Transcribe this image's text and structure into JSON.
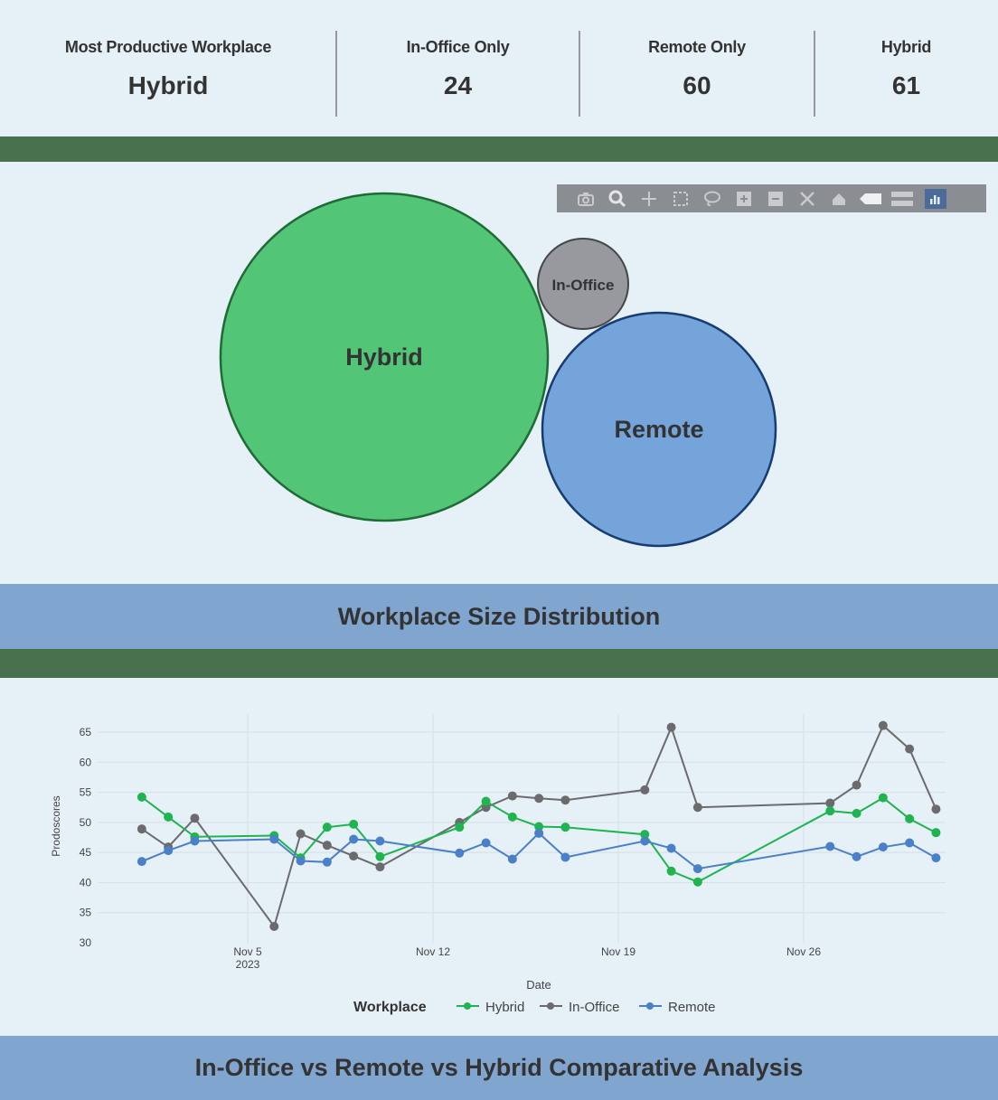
{
  "kpis": [
    {
      "label": "Most Productive Workplace",
      "value": "Hybrid"
    },
    {
      "label": "In-Office Only",
      "value": "24"
    },
    {
      "label": "Remote Only",
      "value": "60"
    },
    {
      "label": "Hybrid",
      "value": "61"
    }
  ],
  "toolbar": {
    "icons": [
      "camera-icon",
      "zoom-icon",
      "pan-icon",
      "box-select-icon",
      "lasso-select-icon",
      "zoom-in-icon",
      "zoom-out-icon",
      "autoscale-icon",
      "reset-axes-icon",
      "hover-closest-icon",
      "hover-compare-icon",
      "plotly-logo-icon"
    ]
  },
  "bubble_chart": {
    "title": "Workplace Size Distribution",
    "bubbles": [
      {
        "label": "Hybrid",
        "value": 61,
        "fill": "#52c577",
        "stroke": "#1f6b35"
      },
      {
        "label": "In-Office",
        "value": 24,
        "fill": "#97999e",
        "stroke": "#444649"
      },
      {
        "label": "Remote",
        "value": 60,
        "fill": "#75a4db",
        "stroke": "#173c72"
      }
    ]
  },
  "line_chart": {
    "title": "In-Office vs Remote vs Hybrid Comparative Analysis",
    "ylabel": "Prodoscores",
    "xlabel": "Date",
    "x_ticks": [
      {
        "label": "Nov 5",
        "sub": "2023"
      },
      {
        "label": "Nov 12",
        "sub": ""
      },
      {
        "label": "Nov 19",
        "sub": ""
      },
      {
        "label": "Nov 26",
        "sub": ""
      }
    ],
    "y_ticks": [
      "65",
      "60",
      "55",
      "50",
      "45",
      "40",
      "35",
      "30"
    ],
    "legend": {
      "title": "Workplace",
      "items": [
        {
          "label": "Hybrid",
          "color": "#1fb44f"
        },
        {
          "label": "In-Office",
          "color": "#6b6b6e"
        },
        {
          "label": "Remote",
          "color": "#4a80c8"
        }
      ]
    }
  },
  "chart_data": [
    {
      "type": "bubble",
      "title": "Workplace Size Distribution",
      "categories": [
        "Hybrid",
        "In-Office",
        "Remote"
      ],
      "values": [
        61,
        24,
        60
      ]
    },
    {
      "type": "line",
      "title": "In-Office vs Remote vs Hybrid Comparative Analysis",
      "xlabel": "Date",
      "ylabel": "Prodoscores",
      "ylim": [
        30,
        66
      ],
      "grid": true,
      "legend_position": "bottom",
      "x": [
        "2023-11-01",
        "2023-11-02",
        "2023-11-03",
        "2023-11-06",
        "2023-11-07",
        "2023-11-08",
        "2023-11-09",
        "2023-11-10",
        "2023-11-13",
        "2023-11-14",
        "2023-11-15",
        "2023-11-16",
        "2023-11-17",
        "2023-11-20",
        "2023-11-21",
        "2023-11-22",
        "2023-11-27",
        "2023-11-28",
        "2023-11-29",
        "2023-11-30",
        "2023-12-01"
      ],
      "series": [
        {
          "name": "Hybrid",
          "values": [
            54.2,
            50.9,
            47.6,
            47.8,
            44.1,
            49.2,
            49.7,
            44.3,
            49.2,
            53.5,
            50.9,
            49.3,
            49.2,
            48.0,
            41.9,
            40.1,
            51.9,
            51.5,
            54.1,
            50.6,
            48.3
          ]
        },
        {
          "name": "In-Office",
          "values": [
            48.9,
            45.9,
            50.7,
            32.7,
            48.1,
            46.2,
            44.4,
            42.6,
            50.0,
            52.5,
            54.4,
            54.0,
            53.7,
            55.4,
            65.8,
            52.5,
            53.2,
            56.2,
            66.1,
            62.2,
            52.2
          ]
        },
        {
          "name": "Remote",
          "values": [
            43.5,
            45.3,
            46.9,
            47.2,
            43.6,
            43.4,
            47.2,
            46.9,
            44.9,
            46.6,
            43.9,
            48.2,
            44.2,
            46.9,
            45.7,
            42.3,
            46.0,
            44.3,
            45.9,
            46.6,
            44.1
          ]
        }
      ]
    }
  ]
}
